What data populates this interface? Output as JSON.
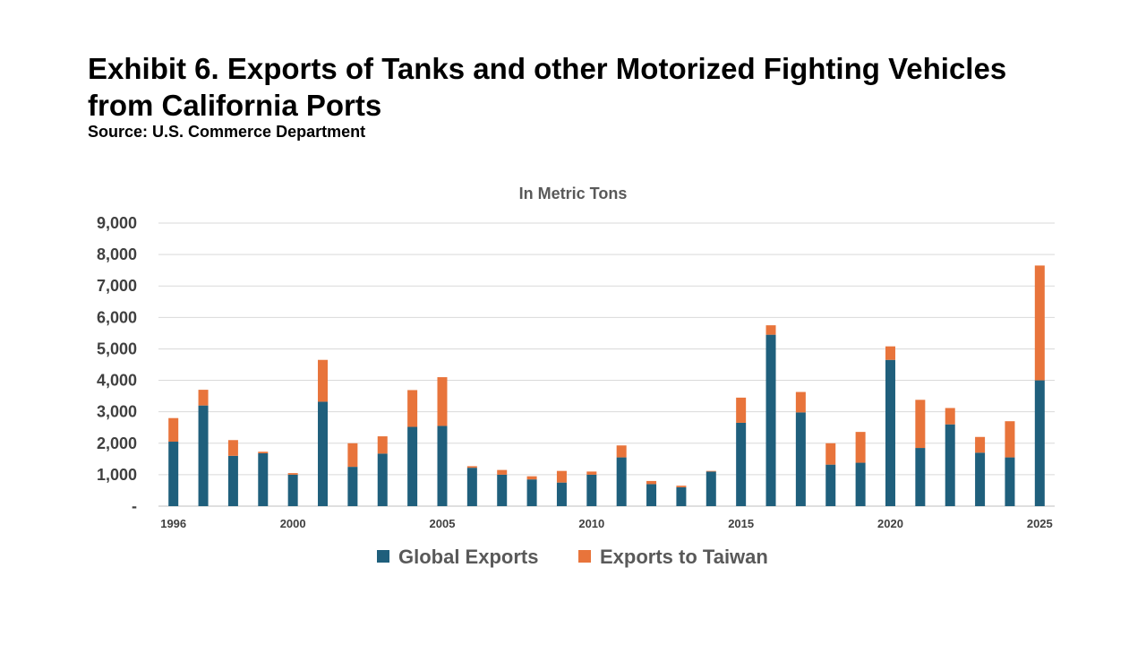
{
  "header": {
    "title": "Exhibit 6. Exports of Tanks and other Motorized Fighting Vehicles from California Ports",
    "source": "Source: U.S. Commerce Department"
  },
  "chart_data": {
    "type": "bar",
    "stacked": true,
    "subtitle": "In Metric Tons",
    "categories": [
      1996,
      1997,
      1998,
      1999,
      2000,
      2001,
      2002,
      2003,
      2004,
      2005,
      2006,
      2007,
      2008,
      2009,
      2010,
      2011,
      2012,
      2013,
      2014,
      2015,
      2016,
      2017,
      2018,
      2019,
      2020,
      2021,
      2022,
      2023,
      2024,
      2025
    ],
    "x_tick_labels": [
      "1996",
      "",
      "",
      "",
      "2000",
      "",
      "",
      "",
      "",
      "2005",
      "",
      "",
      "",
      "",
      "2010",
      "",
      "",
      "",
      "",
      "2015",
      "",
      "",
      "",
      "",
      "2020",
      "",
      "",
      "",
      "",
      "2025"
    ],
    "series": [
      {
        "name": "Global Exports",
        "color": "#1F5F7C",
        "values": [
          2050,
          3200,
          1600,
          1680,
          1000,
          3320,
          1250,
          1670,
          2520,
          2550,
          1220,
          1000,
          850,
          750,
          1000,
          1550,
          700,
          600,
          1100,
          2650,
          5450,
          2980,
          1320,
          1380,
          4650,
          1850,
          2600,
          1700,
          1550,
          4000
        ]
      },
      {
        "name": "Exports to Taiwan",
        "color": "#E8743B",
        "values": [
          750,
          500,
          500,
          50,
          50,
          1330,
          750,
          550,
          1170,
          1550,
          50,
          150,
          100,
          370,
          100,
          380,
          100,
          50,
          20,
          800,
          300,
          650,
          680,
          980,
          430,
          1530,
          520,
          500,
          1150,
          3650
        ]
      }
    ],
    "y_ticks": [
      "-",
      "1,000",
      "2,000",
      "3,000",
      "4,000",
      "5,000",
      "6,000",
      "7,000",
      "8,000",
      "9,000"
    ],
    "ylim": [
      0,
      9000
    ],
    "grid": true,
    "legend_position": "bottom"
  }
}
